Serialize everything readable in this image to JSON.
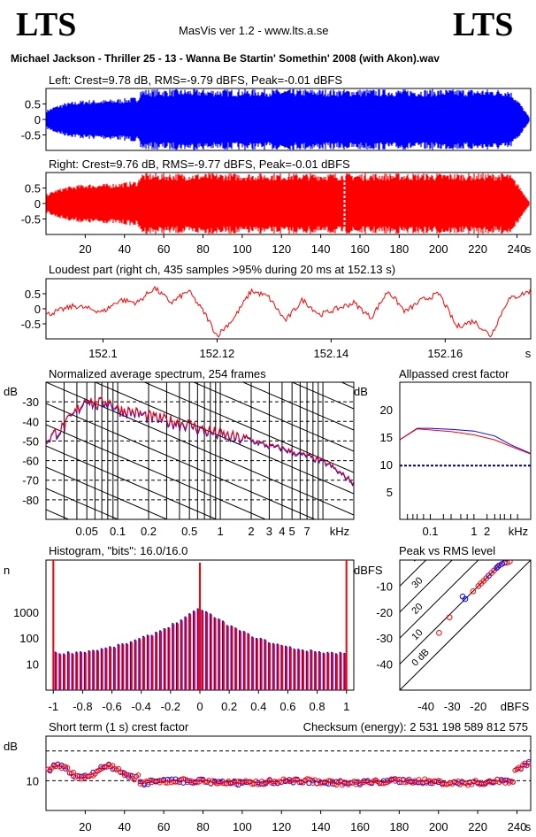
{
  "header": {
    "logo_left": "LTS",
    "logo_right": "LTS",
    "app_title": "MasVis ver 1.2 - www.lts.a.se",
    "file_title": "Michael Jackson - Thriller 25 - 13 - Wanna Be Startin' Somethin' 2008 (with Akon).wav"
  },
  "colors": {
    "left": "#0000ff",
    "right": "#ff0000",
    "grid": "#000000",
    "ref": "#000080"
  },
  "chart_data": [
    {
      "id": "left",
      "type": "area",
      "title": "Left: Crest=9.78 dB, RMS=-9.79 dBFS, Peak=-0.01 dBFS",
      "ylim": [
        -1,
        1
      ],
      "xlim": [
        0,
        247
      ],
      "yticks": [
        "0.5",
        "0",
        "-0.5"
      ],
      "envelope": {
        "t": [
          0,
          5,
          10,
          20,
          30,
          40,
          47,
          48,
          100,
          200,
          236,
          240,
          244,
          247
        ],
        "amp": [
          0.3,
          0.45,
          0.55,
          0.65,
          0.65,
          0.7,
          0.75,
          1.0,
          1.0,
          1.0,
          1.0,
          0.7,
          0.3,
          0.0
        ]
      }
    },
    {
      "id": "right",
      "type": "area",
      "title": "Right: Crest=9.76 dB, RMS=-9.77 dBFS, Peak=-0.01 dBFS",
      "ylim": [
        -1,
        1
      ],
      "xlim": [
        0,
        247
      ],
      "yticks": [
        "0.5",
        "0",
        "-0.5"
      ],
      "xticks": [
        "20",
        "40",
        "60",
        "80",
        "100",
        "120",
        "140",
        "160",
        "180",
        "200",
        "220",
        "240"
      ],
      "xunit": "s",
      "marker_t": 152.13,
      "envelope": {
        "t": [
          0,
          5,
          10,
          20,
          30,
          40,
          47,
          48,
          100,
          200,
          236,
          240,
          244,
          247
        ],
        "amp": [
          0.3,
          0.45,
          0.55,
          0.65,
          0.65,
          0.7,
          0.75,
          1.0,
          1.0,
          1.0,
          1.0,
          0.7,
          0.3,
          0.0
        ]
      }
    },
    {
      "id": "loudest",
      "type": "line",
      "title": "Loudest part (right ch, 435 samples >95% during 20 ms at 152.13 s)",
      "xlim": [
        152.09,
        152.175
      ],
      "ylim": [
        -1,
        1
      ],
      "yticks": [
        "0.5",
        "0",
        "-0.5"
      ],
      "xticks": [
        "152.1",
        "152.12",
        "152.14",
        "152.16"
      ],
      "xunit": "s",
      "x": [
        152.09,
        152.095,
        152.1,
        152.103,
        152.106,
        152.109,
        152.112,
        152.115,
        152.118,
        152.12,
        152.123,
        152.126,
        152.129,
        152.132,
        152.135,
        152.138,
        152.141,
        152.144,
        152.147,
        152.15,
        152.153,
        152.156,
        152.159,
        152.162,
        152.165,
        152.168,
        152.171,
        152.175
      ],
      "y": [
        -0.2,
        0.1,
        -0.1,
        0.3,
        0.2,
        0.7,
        0.2,
        0.6,
        -0.2,
        -0.9,
        -0.3,
        0.6,
        0.4,
        -0.4,
        0.3,
        -0.2,
        0.0,
        0.2,
        -0.3,
        0.6,
        -0.1,
        0.3,
        0.5,
        -0.6,
        -0.4,
        -0.9,
        0.3,
        0.6
      ]
    },
    {
      "id": "spectrum",
      "type": "line",
      "title": "Normalized average spectrum, 254 frames",
      "ylabel": "dB",
      "xunit": "kHz",
      "xscale": "log",
      "xlim": [
        0.02,
        20
      ],
      "ylim": [
        -90,
        -20
      ],
      "yticks": [
        "-30",
        "-40",
        "-50",
        "-60",
        "-70",
        "-80"
      ],
      "xticks": [
        "0.05",
        "0.1",
        "0.2",
        "0.5",
        "1",
        "2",
        "3",
        "4",
        "5",
        "7"
      ],
      "x": [
        0.02,
        0.03,
        0.04,
        0.05,
        0.06,
        0.08,
        0.1,
        0.15,
        0.2,
        0.3,
        0.5,
        0.7,
        1,
        1.5,
        2,
        3,
        4,
        5,
        7,
        10,
        12,
        14,
        16,
        18,
        20
      ],
      "y": [
        -50,
        -43,
        -35,
        -28,
        -32,
        -30,
        -34,
        -36,
        -38,
        -40,
        -42,
        -45,
        -47,
        -49,
        -50,
        -53,
        -54,
        -56,
        -58,
        -61,
        -63,
        -66,
        -68,
        -70,
        -72
      ]
    },
    {
      "id": "crest",
      "type": "line",
      "title": "Allpassed crest factor",
      "ylabel": "dB",
      "xunit": "kHz",
      "xscale": "log",
      "xlim": [
        0.02,
        20
      ],
      "ylim": [
        0,
        25
      ],
      "yticks": [
        "20",
        "15",
        "10",
        "5"
      ],
      "xticks": [
        "0.1",
        "1",
        "2"
      ],
      "reference": 9.8,
      "series": [
        {
          "x": [
            0.02,
            0.05,
            0.1,
            0.3,
            1,
            3,
            7,
            20
          ],
          "y": [
            14.5,
            16.6,
            16.6,
            16.4,
            16.1,
            15.2,
            13.6,
            12.0
          ]
        },
        {
          "x": [
            0.02,
            0.05,
            0.1,
            0.3,
            1,
            3,
            7,
            20
          ],
          "y": [
            14.5,
            16.5,
            16.3,
            16.0,
            15.4,
            14.5,
            13.3,
            11.9
          ]
        }
      ]
    },
    {
      "id": "histogram",
      "type": "bar",
      "title": "Histogram, \"bits\": 16.0/16.0",
      "ylabel": "n",
      "yscale": "log",
      "xlim": [
        -1.05,
        1.05
      ],
      "ylim": [
        1,
        100000
      ],
      "yticks": [
        "1000",
        "100",
        "10"
      ],
      "xticks": [
        "-1",
        "-0.8",
        "-0.6",
        "-0.4",
        "-0.2",
        "0",
        "0.2",
        "0.4",
        "0.6",
        "0.8",
        "1"
      ],
      "edge_counts": [
        100000,
        100000
      ],
      "center_count": 1500,
      "tail_count": 28
    },
    {
      "id": "peakrms",
      "type": "scatter",
      "title": "Peak vs RMS level",
      "ylabel": "dBFS",
      "xunit": "dBFS",
      "xlim": [
        -50,
        0
      ],
      "ylim": [
        -50,
        0
      ],
      "yticks": [
        "-10",
        "-20",
        "-30",
        "-40"
      ],
      "xticks": [
        "-40",
        "-30",
        "-20"
      ],
      "diagonals": [
        "40",
        "30",
        "20",
        "10",
        "0 dB"
      ],
      "points": [
        [
          -25,
          -15
        ],
        [
          -22,
          -12
        ],
        [
          -18,
          -8
        ],
        [
          -16,
          -6
        ],
        [
          -14,
          -4
        ],
        [
          -12,
          -2
        ],
        [
          -10,
          -1
        ],
        [
          -9,
          -1
        ],
        [
          -8,
          -0.5
        ],
        [
          -11,
          -1.5
        ],
        [
          -15,
          -5
        ],
        [
          -20,
          -10
        ],
        [
          -13,
          -3
        ],
        [
          -17,
          -7
        ],
        [
          -19,
          -9
        ],
        [
          -12.5,
          -2.5
        ],
        [
          -31,
          -22
        ],
        [
          -35,
          -28
        ],
        [
          -26,
          -14
        ]
      ]
    },
    {
      "id": "shortcrest",
      "type": "scatter",
      "title": "Short term (1 s) crest factor",
      "ylabel": "dB",
      "xunit": "s",
      "xlim": [
        0,
        247
      ],
      "ylim": [
        0,
        25
      ],
      "yticks": [
        "10"
      ],
      "xticks": [
        "20",
        "40",
        "60",
        "80",
        "100",
        "120",
        "140",
        "160",
        "180",
        "200",
        "220",
        "240"
      ],
      "checksum": "Checksum (energy):  2 531 198 589 812 575",
      "reference": 10,
      "gridlines": [
        10,
        20
      ]
    }
  ]
}
